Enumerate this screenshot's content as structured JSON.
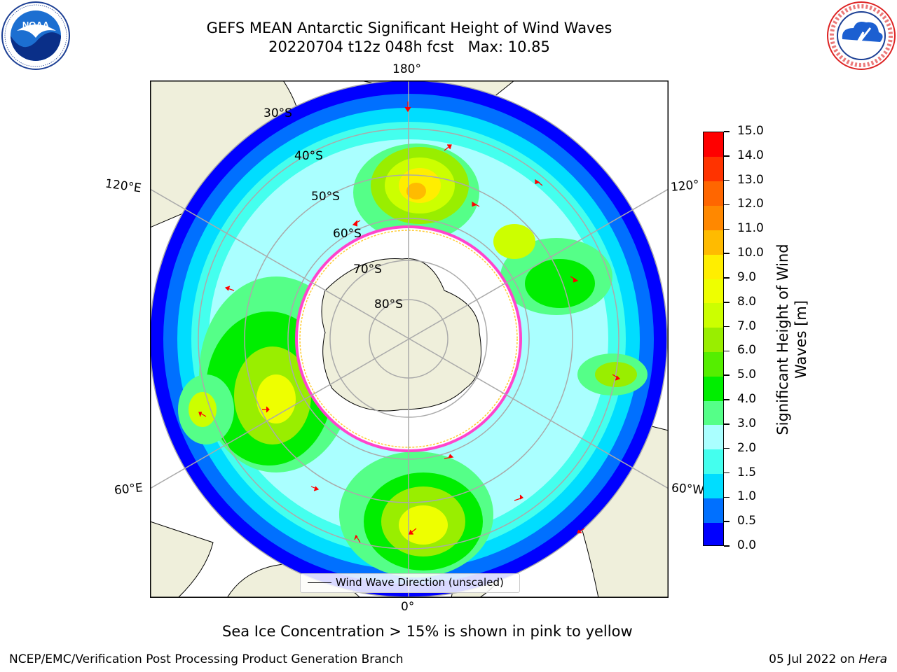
{
  "title": {
    "line1": "GEFS MEAN Antarctic Significant Height of Wind Waves",
    "line2": "20220704 t12z 048h fcst   Max: 10.85"
  },
  "logos": {
    "left": {
      "name": "NOAA",
      "ring_text": "NATIONAL OCEANIC AND ATMOSPHERIC ADMINISTRATION · U.S. DEPARTMENT OF COMMERCE"
    },
    "right": {
      "name": "NATIONAL WEATHER SERVICE"
    }
  },
  "map": {
    "projection": "south-polar-stereographic",
    "longitude_labels": {
      "top": "180°",
      "bottom": "0°",
      "left_upper": "120°E",
      "left_lower": "60°E",
      "right_upper": "120°",
      "right_lower": "60°W"
    },
    "latitude_labels": [
      "30°S",
      "40°S",
      "50°S",
      "60°S",
      "70°S",
      "80°S"
    ],
    "legend": "Wind Wave Direction (unscaled)",
    "colors": {
      "land": "#efefdb",
      "ice_edge_pink": "#ff44cc",
      "ice_edge_yellow": "#ffcc33",
      "arrow": "#ff0000",
      "grid": "#aaaaaa"
    }
  },
  "colorbar": {
    "label": "Significant Height of Wind Waves [m]",
    "label_line1": "Significant Height of Wind",
    "label_line2": "Waves [m]",
    "ticks": [
      "0.0",
      "0.5",
      "1.0",
      "1.5",
      "2.0",
      "3.0",
      "4.0",
      "5.0",
      "6.0",
      "7.0",
      "8.0",
      "9.0",
      "10.0",
      "11.0",
      "12.0",
      "13.0",
      "14.0",
      "15.0"
    ],
    "colors": [
      "#0000ff",
      "#0070ff",
      "#00ddff",
      "#44ffee",
      "#aaffff",
      "#55ff88",
      "#00ee00",
      "#55ee00",
      "#99ee00",
      "#ccff00",
      "#eeff00",
      "#ffee00",
      "#ffbb00",
      "#ff8800",
      "#ff6600",
      "#ff3300",
      "#ff0000"
    ]
  },
  "sea_ice_note": "Sea Ice Concentration > 15% is shown in pink to yellow",
  "footer": {
    "left": "NCEP/EMC/Verification Post Processing Product Generation Branch",
    "right_date": "05 Jul 2022 on ",
    "right_machine": "Hera"
  }
}
